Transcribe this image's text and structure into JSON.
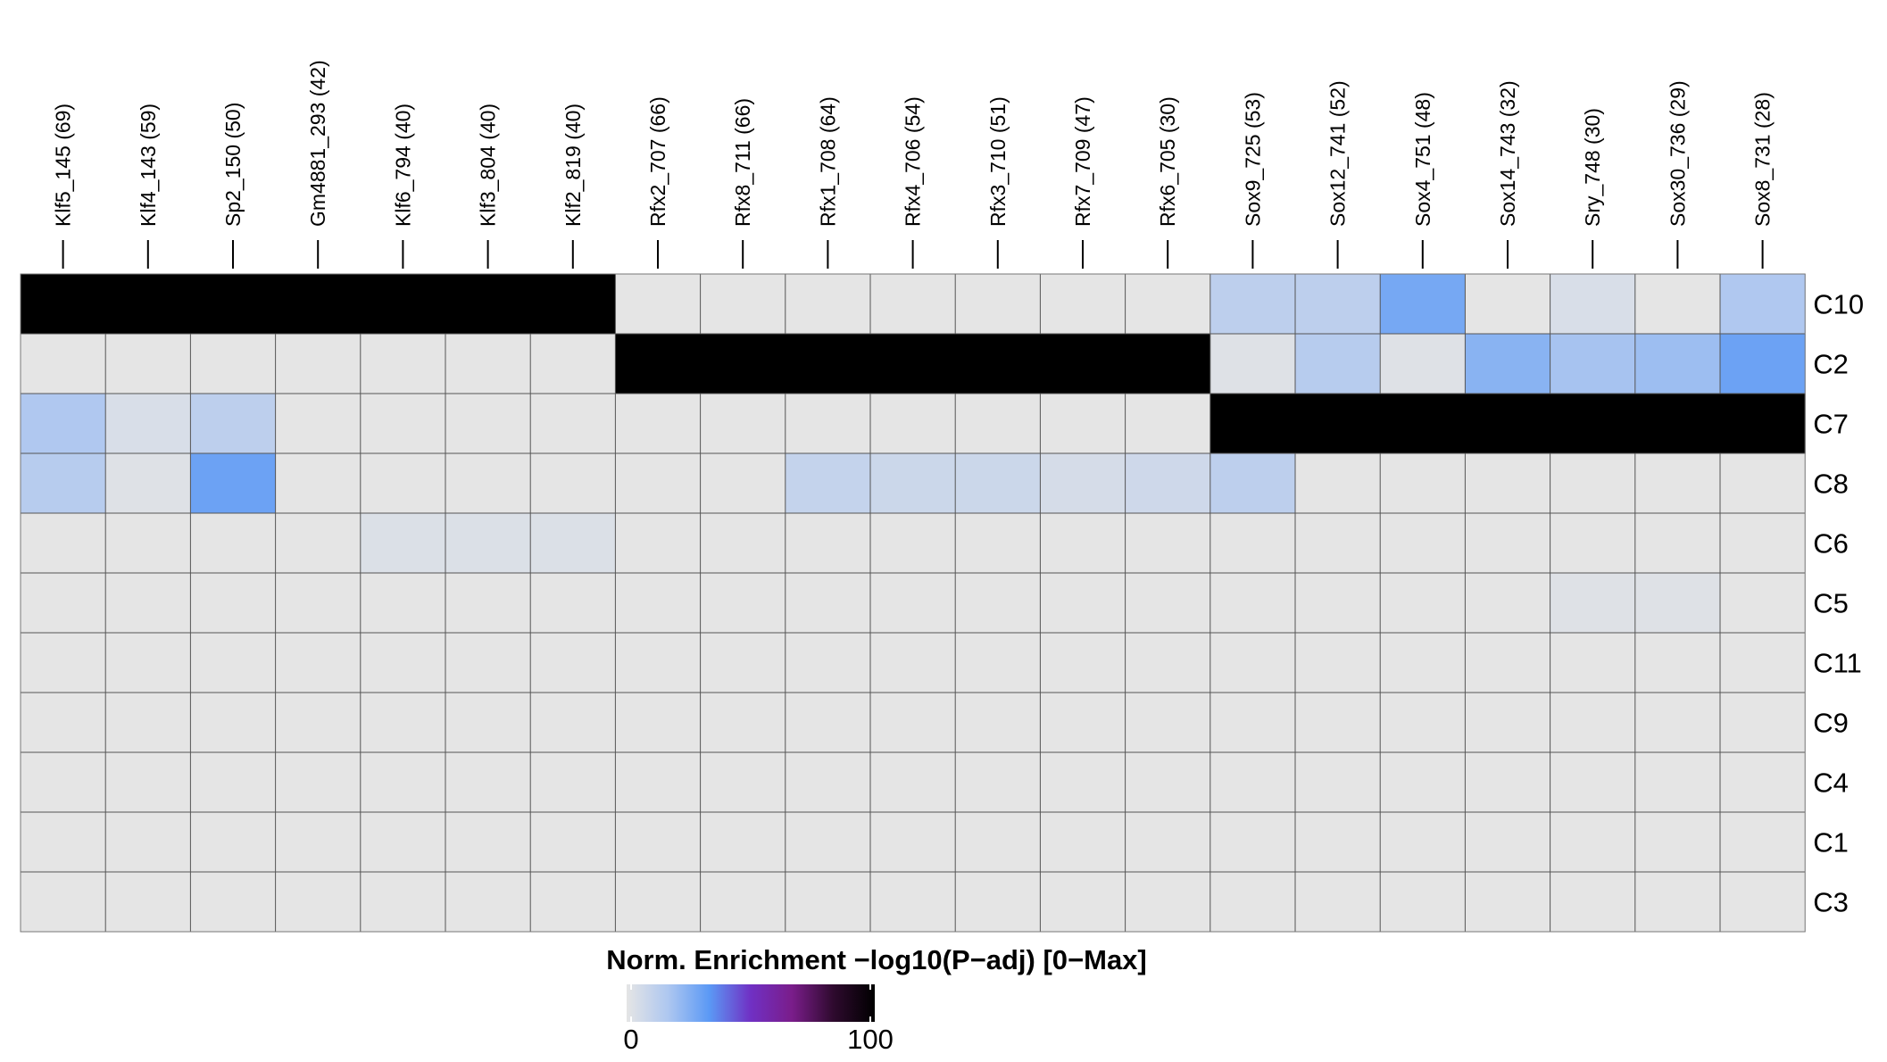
{
  "chart_data": {
    "type": "heatmap",
    "title": "",
    "columns": [
      "Klf5_145 (69)",
      "Klf4_143 (59)",
      "Sp2_150 (50)",
      "Gm4881_293 (42)",
      "Klf6_794 (40)",
      "Klf3_804 (40)",
      "Klf2_819 (40)",
      "Rfx2_707 (66)",
      "Rfx8_711 (66)",
      "Rfx1_708 (64)",
      "Rfx4_706 (54)",
      "Rfx3_710 (51)",
      "Rfx7_709 (47)",
      "Rfx6_705 (30)",
      "Sox9_725 (53)",
      "Sox12_741 (52)",
      "Sox4_751 (48)",
      "Sox14_743 (32)",
      "Sry_748 (30)",
      "Sox30_736 (29)",
      "Sox8_731 (28)"
    ],
    "rows": [
      "C10",
      "C2",
      "C7",
      "C8",
      "C6",
      "C5",
      "C11",
      "C9",
      "C4",
      "C1",
      "C3"
    ],
    "values": [
      [
        100,
        100,
        100,
        100,
        100,
        100,
        100,
        0,
        0,
        0,
        0,
        0,
        0,
        0,
        12,
        12,
        28,
        0,
        4,
        0,
        16
      ],
      [
        0,
        0,
        0,
        0,
        0,
        0,
        0,
        100,
        100,
        100,
        100,
        100,
        100,
        100,
        2,
        14,
        2,
        24,
        18,
        20,
        30
      ],
      [
        16,
        4,
        12,
        0,
        0,
        0,
        0,
        0,
        0,
        0,
        0,
        0,
        0,
        0,
        100,
        100,
        100,
        100,
        100,
        100,
        100
      ],
      [
        14,
        2,
        30,
        0,
        0,
        0,
        0,
        0,
        0,
        10,
        8,
        8,
        5,
        7,
        12,
        0,
        0,
        0,
        0,
        0,
        0
      ],
      [
        0,
        0,
        0,
        0,
        3,
        3,
        3,
        0,
        0,
        0,
        0,
        0,
        0,
        0,
        0,
        0,
        0,
        0,
        0,
        0,
        0
      ],
      [
        0,
        0,
        0,
        0,
        0,
        0,
        0,
        0,
        0,
        0,
        0,
        0,
        0,
        0,
        0,
        0,
        0,
        0,
        2,
        2,
        0
      ],
      [
        0,
        0,
        0,
        0,
        0,
        0,
        0,
        0,
        0,
        0,
        0,
        0,
        0,
        0,
        0,
        0,
        0,
        0,
        0,
        0,
        0
      ],
      [
        0,
        0,
        0,
        0,
        0,
        0,
        0,
        0,
        0,
        0,
        0,
        0,
        0,
        0,
        0,
        0,
        0,
        0,
        0,
        0,
        0
      ],
      [
        0,
        0,
        0,
        0,
        0,
        0,
        0,
        0,
        0,
        0,
        0,
        0,
        0,
        0,
        0,
        0,
        0,
        0,
        0,
        0,
        0
      ],
      [
        0,
        0,
        0,
        0,
        0,
        0,
        0,
        0,
        0,
        0,
        0,
        0,
        0,
        0,
        0,
        0,
        0,
        0,
        0,
        0,
        0
      ],
      [
        0,
        0,
        0,
        0,
        0,
        0,
        0,
        0,
        0,
        0,
        0,
        0,
        0,
        0,
        0,
        0,
        0,
        0,
        0,
        0,
        0
      ]
    ],
    "value_range": [
      0,
      100
    ],
    "legend": {
      "title": "Norm. Enrichment −log10(P−adj) [0−Max]",
      "min_label": "0",
      "max_label": "100",
      "placement": "bottom-center"
    },
    "colormap": [
      "#e5e5e5",
      "#aec7f0",
      "#5b99f5",
      "#7030c4",
      "#7a1d8a",
      "#2e0a2e",
      "#000000"
    ],
    "grid": true
  }
}
